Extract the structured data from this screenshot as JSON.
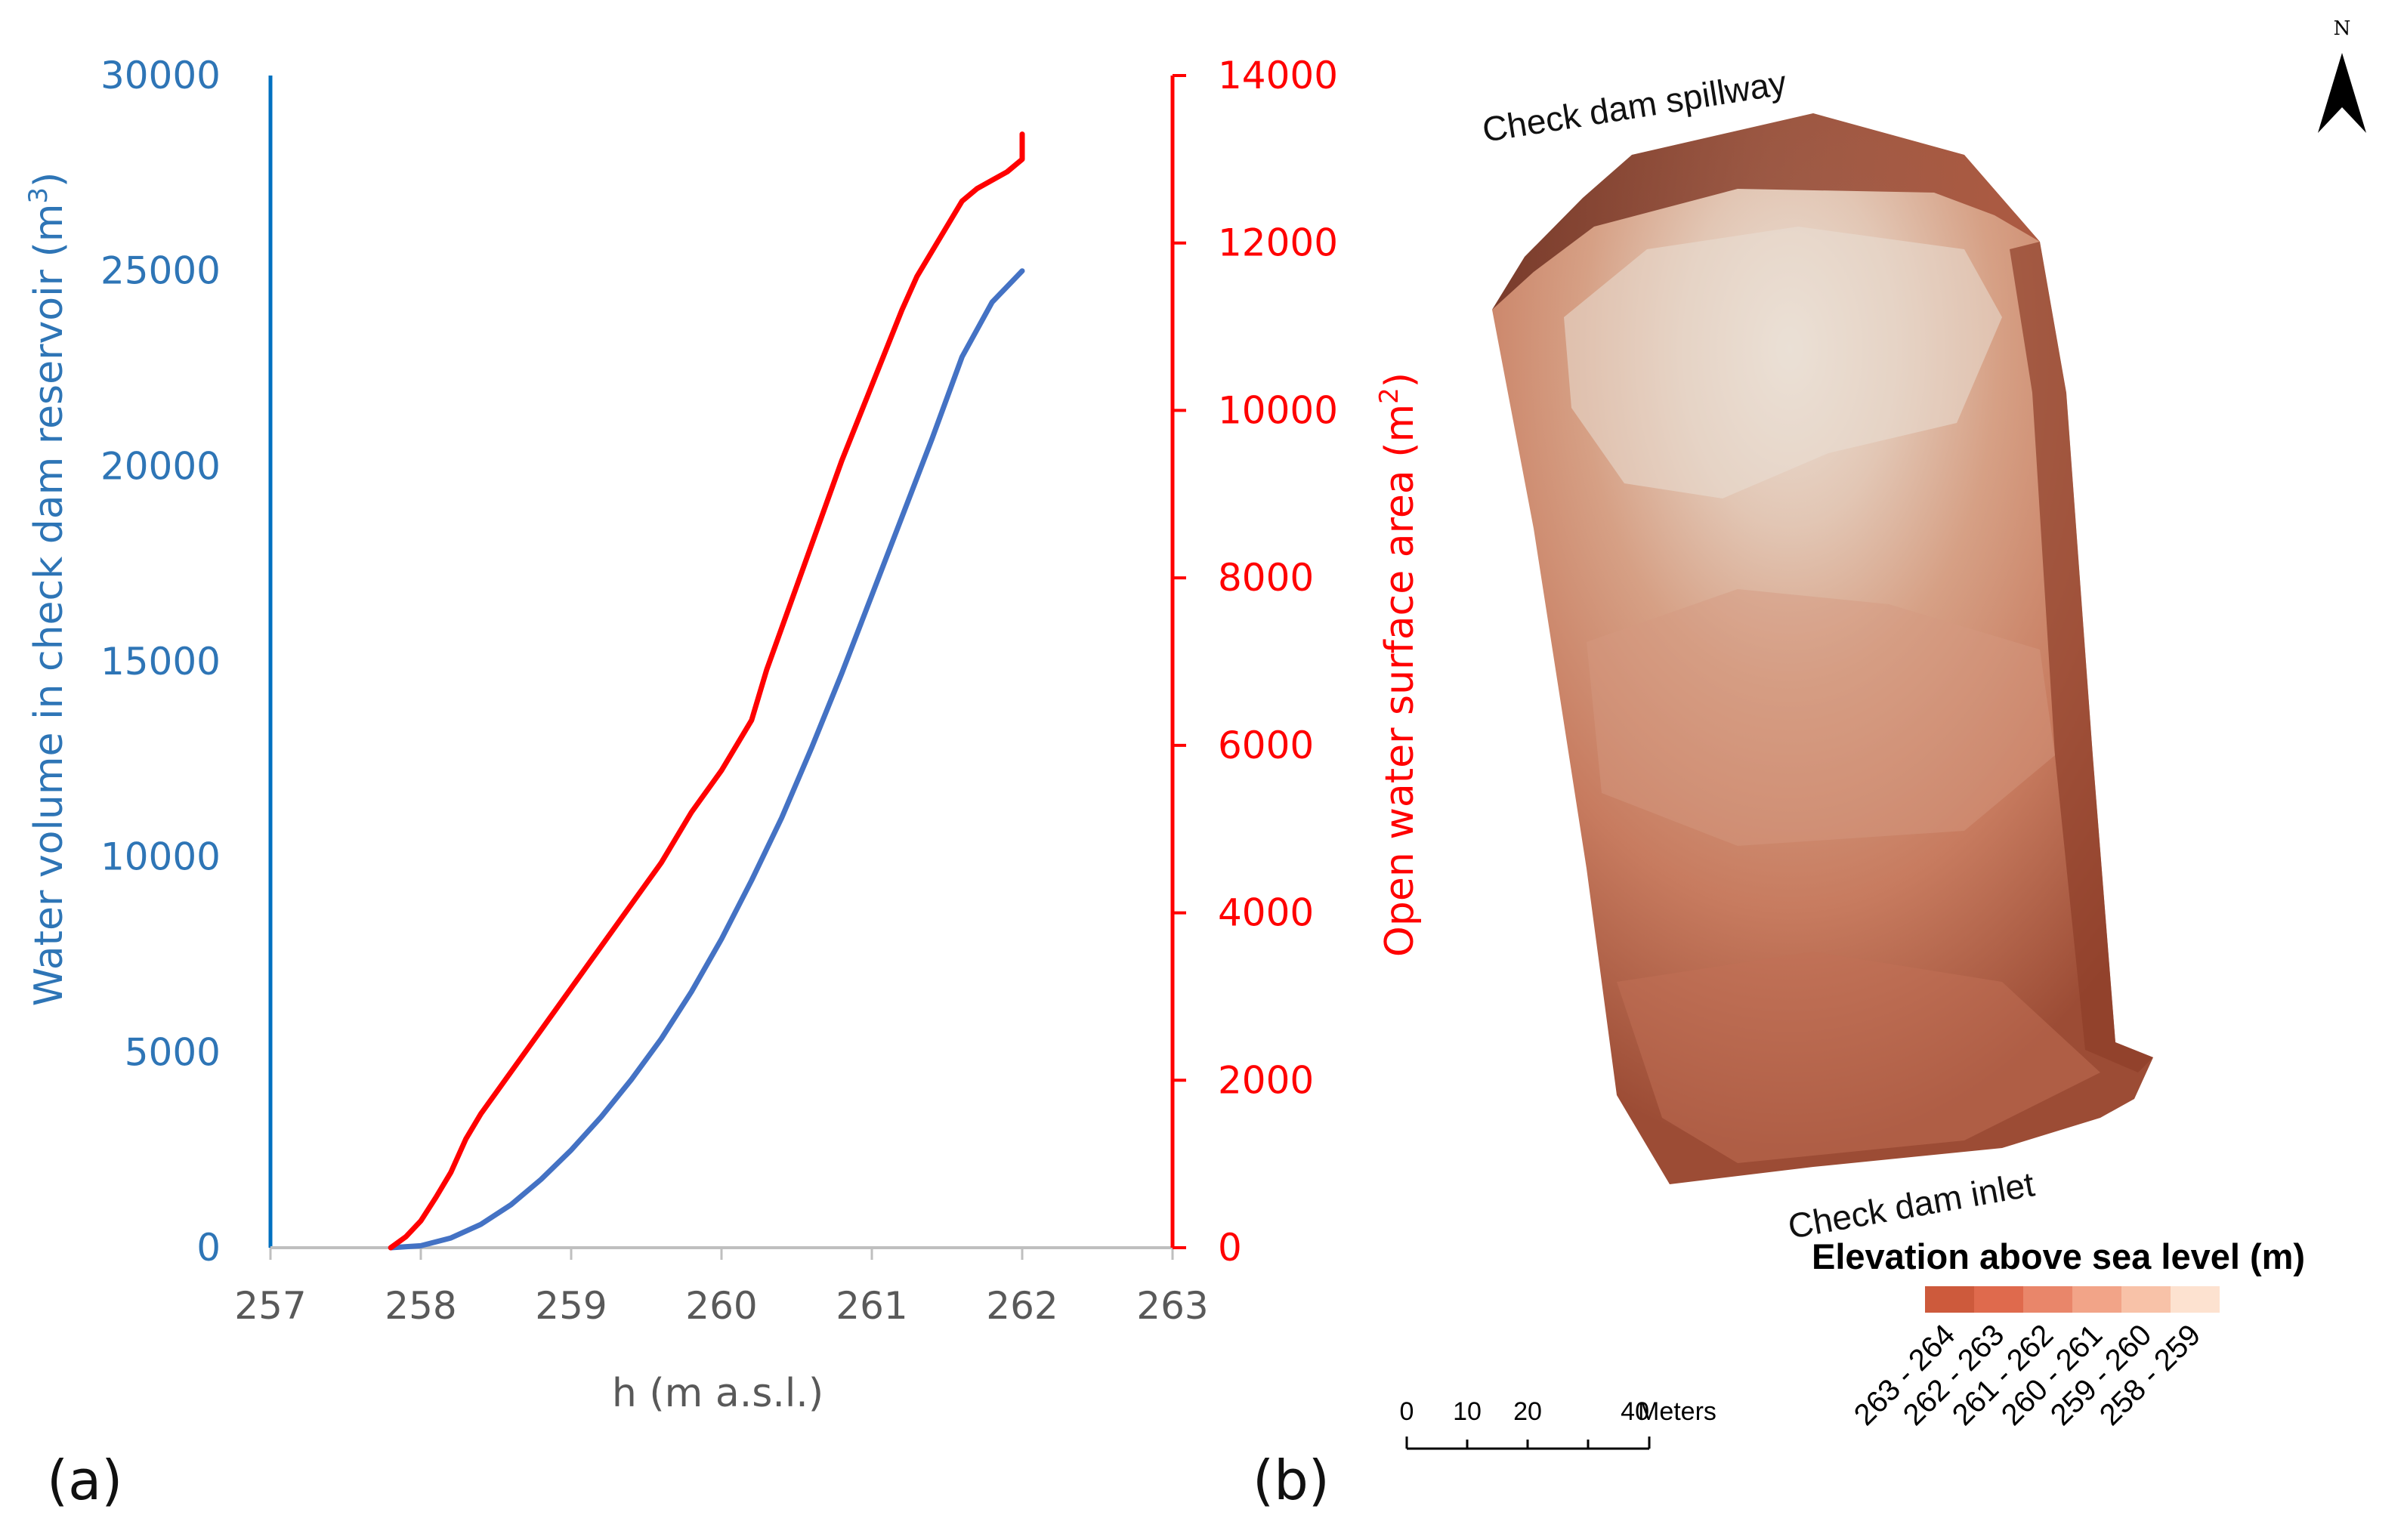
{
  "chart_data": {
    "type": "line",
    "panel_label": "(a)",
    "xlabel": "h (m a.s.l.)",
    "xlim": [
      257,
      263
    ],
    "x_ticks": [
      "257",
      "258",
      "259",
      "260",
      "261",
      "262",
      "263"
    ],
    "ylabel_left": {
      "text": "Water volume in check dam reservoir (m",
      "sup": "3",
      "close": ")"
    },
    "ylim_left": [
      0,
      30000
    ],
    "y_ticks_left": [
      "0",
      "5000",
      "10000",
      "15000",
      "20000",
      "25000",
      "30000"
    ],
    "ylabel_right": {
      "text": "Open water surface area (m",
      "sup": "2",
      "close": ")"
    },
    "ylim_right": [
      0,
      14000
    ],
    "y_ticks_right": [
      "0",
      "2000",
      "4000",
      "6000",
      "8000",
      "10000",
      "12000",
      "14000"
    ],
    "series": [
      {
        "name": "Water volume",
        "axis": "left",
        "color": "#4472c4",
        "x": [
          257.8,
          258.0,
          258.2,
          258.4,
          258.6,
          258.8,
          259.0,
          259.2,
          259.4,
          259.6,
          259.8,
          260.0,
          260.2,
          260.4,
          260.6,
          260.8,
          261.0,
          261.2,
          261.4,
          261.6,
          261.8,
          262.0
        ],
        "values": [
          0,
          50,
          250,
          600,
          1100,
          1750,
          2500,
          3350,
          4300,
          5350,
          6550,
          7900,
          9400,
          11000,
          12800,
          14700,
          16700,
          18700,
          20700,
          22800,
          24200,
          25000
        ]
      },
      {
        "name": "Open water surface area",
        "axis": "right",
        "color": "#ff0000",
        "x": [
          257.8,
          257.9,
          258.0,
          258.1,
          258.2,
          258.3,
          258.4,
          258.6,
          258.8,
          259.0,
          259.2,
          259.4,
          259.6,
          259.8,
          260.0,
          260.2,
          260.3,
          260.4,
          260.6,
          260.8,
          261.0,
          261.2,
          261.3,
          261.5,
          261.6,
          261.7,
          261.8,
          261.9,
          262.0,
          262.0
        ],
        "values": [
          0,
          130,
          320,
          600,
          900,
          1300,
          1600,
          2100,
          2600,
          3100,
          3600,
          4100,
          4600,
          5200,
          5700,
          6300,
          6900,
          7400,
          8400,
          9400,
          10300,
          11200,
          11600,
          12200,
          12500,
          12650,
          12750,
          12850,
          13000,
          13300
        ]
      }
    ]
  },
  "map": {
    "panel_label": "(b)",
    "label_spillway": "Check dam spillway",
    "label_inlet": "Check dam inlet",
    "north_letter": "N",
    "legend_title": "Elevation above sea level (m)",
    "legend_classes": [
      {
        "label": "263 - 264",
        "color": "#cd5a3c"
      },
      {
        "label": "262 - 263",
        "color": "#df6a4d"
      },
      {
        "label": "261 - 262",
        "color": "#e9866a"
      },
      {
        "label": "260 - 261",
        "color": "#f2a488"
      },
      {
        "label": "259 - 260",
        "color": "#f8c2a8"
      },
      {
        "label": "258 - 259",
        "color": "#fde2d0"
      }
    ],
    "scale_ticks": [
      "0",
      "10",
      "20",
      "40"
    ],
    "scale_unit": "Meters"
  }
}
